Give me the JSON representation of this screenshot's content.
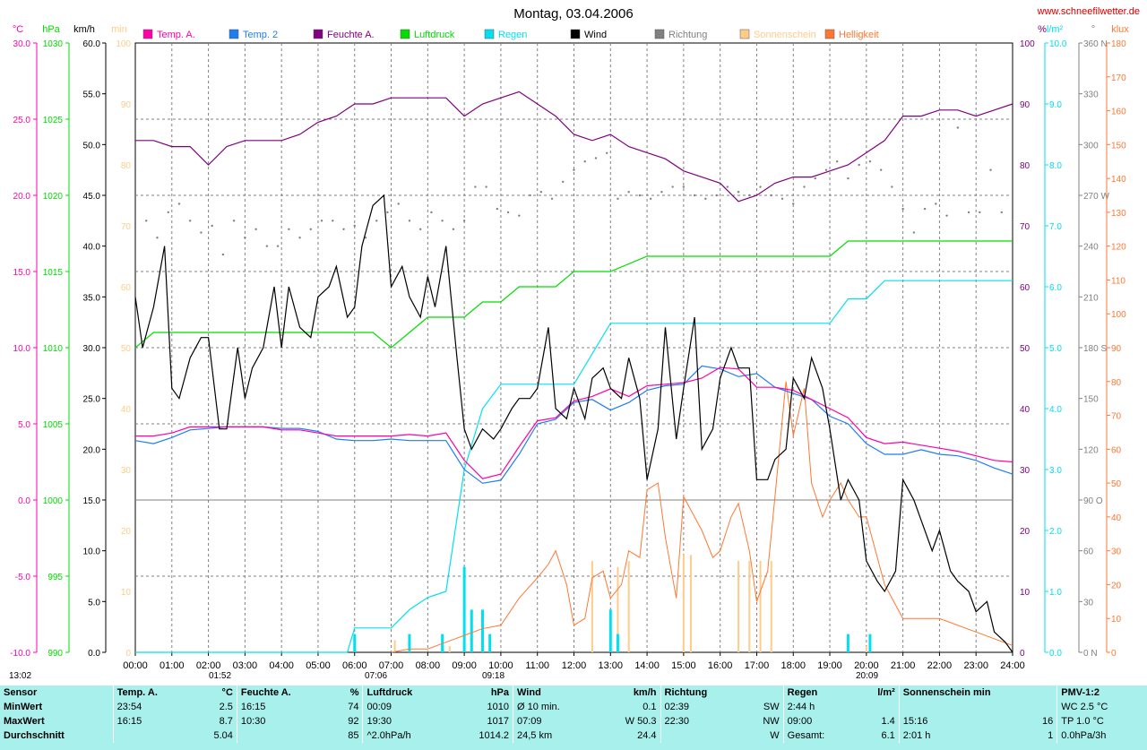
{
  "title": "Montag, 03.04.2006",
  "site": "www.schneefilwetter.de",
  "colors": {
    "temp_a": "#ff00aa",
    "temp_2": "#1e7ef0",
    "feuchte": "#800080",
    "luftdruck": "#00dd00",
    "regen": "#00e0f0",
    "wind": "#000000",
    "richtung": "#808080",
    "sonnenschein": "#ffcc88",
    "helligkeit": "#ff7733",
    "stats_bg": "#a8f0ec"
  },
  "legend": [
    "Temp. A.",
    "Temp. 2",
    "Feuchte A.",
    "Luftdruck",
    "Regen",
    "Wind",
    "Richtung",
    "Sonnenschein",
    "Helligkeit"
  ],
  "axes": {
    "temp": {
      "unit": "°C",
      "min": -10,
      "max": 30,
      "ticks": [
        "30.0",
        "25.0",
        "20.0",
        "15.0",
        "10.0",
        "5.0",
        "0.0",
        "-5.0",
        "-10.0"
      ]
    },
    "pressure": {
      "unit": "hPa",
      "min": 990,
      "max": 1030,
      "ticks": [
        "1030",
        "1025",
        "1020",
        "1015",
        "1010",
        "1005",
        "1000",
        "995",
        "990"
      ]
    },
    "wind": {
      "unit": "km/h",
      "min": 0,
      "max": 60,
      "ticks": [
        "60.0",
        "55.0",
        "50.0",
        "45.0",
        "40.0",
        "35.0",
        "30.0",
        "25.0",
        "20.0",
        "15.0",
        "10.0",
        "5.0",
        "0.0"
      ]
    },
    "sun": {
      "unit": "min",
      "min": 0,
      "max": 100,
      "ticks": [
        "100",
        "90",
        "80",
        "70",
        "60",
        "50",
        "40",
        "30",
        "20",
        "10",
        "0"
      ]
    },
    "humidity": {
      "unit": "%",
      "min": 0,
      "max": 100,
      "ticks": [
        "100",
        "90",
        "80",
        "70",
        "60",
        "50",
        "40",
        "30",
        "20",
        "10",
        "0"
      ]
    },
    "rain": {
      "unit": "l/m²",
      "min": 0,
      "max": 10,
      "ticks": [
        "10.0",
        "9.0",
        "8.0",
        "7.0",
        "6.0",
        "5.0",
        "4.0",
        "3.0",
        "2.0",
        "1.0",
        "0.0"
      ]
    },
    "direction": {
      "unit": "°",
      "min": 0,
      "max": 360,
      "ticks": [
        "360 N",
        "330",
        "300",
        "270 W",
        "240",
        "210",
        "180 S",
        "150",
        "120",
        "90 O",
        "60",
        "30",
        "0 N"
      ]
    },
    "klux": {
      "unit": "klux",
      "min": 0,
      "max": 180,
      "ticks": [
        "180",
        "170",
        "160",
        "150",
        "140",
        "130",
        "120",
        "110",
        "100",
        "90",
        "80",
        "70",
        "60",
        "50",
        "40",
        "30",
        "20",
        "10",
        "0"
      ]
    },
    "x_ticks": [
      "00:00",
      "01:00",
      "02:00",
      "03:00",
      "04:00",
      "05:00",
      "06:00",
      "07:00",
      "08:00",
      "09:00",
      "10:00",
      "11:00",
      "12:00",
      "13:00",
      "14:00",
      "15:00",
      "16:00",
      "17:00",
      "18:00",
      "19:00",
      "20:00",
      "21:00",
      "22:00",
      "23:00",
      "24:00"
    ]
  },
  "markers": {
    "daylength": "13:02",
    "moonrise": "01:52",
    "sunrise": "07:06",
    "moonset": "09:18",
    "sunset": "20:09"
  },
  "chart_data": {
    "type": "line",
    "x_unit": "hours",
    "series": [
      {
        "name": "Temp. A.",
        "axis": "temp",
        "x": [
          0,
          0.5,
          1,
          1.5,
          2,
          2.5,
          3,
          3.5,
          4,
          4.5,
          5,
          5.5,
          6,
          6.5,
          7,
          7.5,
          8,
          8.5,
          9,
          9.5,
          10,
          10.5,
          11,
          11.5,
          12,
          12.5,
          13,
          13.5,
          14,
          14.5,
          15,
          15.5,
          16,
          16.5,
          17,
          17.5,
          18,
          18.5,
          19,
          19.5,
          20,
          20.5,
          21,
          21.5,
          22,
          22.5,
          23,
          23.5,
          24
        ],
        "y": [
          4.2,
          4.2,
          4.4,
          4.8,
          4.8,
          4.8,
          4.8,
          4.8,
          4.6,
          4.6,
          4.4,
          4.2,
          4.2,
          4.2,
          4.2,
          4.3,
          4.2,
          4.4,
          2.6,
          1.4,
          1.7,
          3.5,
          5.2,
          5.4,
          6.5,
          6.8,
          7.3,
          6.8,
          7.5,
          7.6,
          7.7,
          8.0,
          8.7,
          8.6,
          7.4,
          7.4,
          7.2,
          6.6,
          6.0,
          5.4,
          4.1,
          3.7,
          3.8,
          3.6,
          3.4,
          3.2,
          2.9,
          2.6,
          2.5
        ]
      },
      {
        "name": "Temp. 2",
        "axis": "temp",
        "x": [
          0,
          0.5,
          1,
          1.5,
          2,
          2.5,
          3,
          3.5,
          4,
          4.5,
          5,
          5.5,
          6,
          6.5,
          7,
          7.5,
          8,
          8.5,
          9,
          9.5,
          10,
          10.5,
          11,
          11.5,
          12,
          12.5,
          13,
          13.5,
          14,
          14.5,
          15,
          15.5,
          16,
          16.5,
          17,
          17.5,
          18,
          18.5,
          19,
          19.5,
          20,
          20.5,
          21,
          21.5,
          22,
          22.5,
          23,
          23.5,
          24
        ],
        "y": [
          3.9,
          3.7,
          4.1,
          4.6,
          4.7,
          4.8,
          4.8,
          4.8,
          4.7,
          4.7,
          4.5,
          4.0,
          3.9,
          3.9,
          4.0,
          3.9,
          3.9,
          3.9,
          2.0,
          1.1,
          1.3,
          3.0,
          5.0,
          5.3,
          6.4,
          6.6,
          5.9,
          6.4,
          7.2,
          7.5,
          7.6,
          8.8,
          8.6,
          8.1,
          8.3,
          7.4,
          7.0,
          6.6,
          5.5,
          5.0,
          3.7,
          3.0,
          3.0,
          3.3,
          3.0,
          2.9,
          2.6,
          2.1,
          1.7
        ]
      },
      {
        "name": "Feuchte A.",
        "axis": "humidity",
        "x": [
          0,
          0.5,
          1,
          1.5,
          2,
          2.5,
          3,
          3.5,
          4,
          4.5,
          5,
          5.5,
          6,
          6.5,
          7,
          7.5,
          8,
          8.5,
          9,
          9.5,
          10,
          10.5,
          11,
          11.5,
          12,
          12.5,
          13,
          13.5,
          14,
          14.5,
          15,
          15.5,
          16,
          16.5,
          17,
          17.5,
          18,
          18.5,
          19,
          19.5,
          20,
          20.5,
          21,
          21.5,
          22,
          22.5,
          23,
          23.5,
          24
        ],
        "y": [
          84,
          84,
          83,
          83,
          80,
          83,
          84,
          84,
          84,
          85,
          87,
          88,
          90,
          90,
          91,
          91,
          91,
          91,
          88,
          90,
          91,
          92,
          90,
          88,
          85,
          84,
          85,
          83,
          82,
          81,
          79,
          78,
          77,
          74,
          75,
          77,
          78,
          78,
          79,
          80,
          82,
          84,
          88,
          88,
          89,
          89,
          88,
          89,
          90
        ]
      },
      {
        "name": "Luftdruck",
        "axis": "pressure",
        "x": [
          0,
          0.5,
          1,
          1.5,
          2,
          3,
          4,
          5,
          6,
          6.5,
          7,
          7.5,
          8,
          8.5,
          9,
          9.5,
          10,
          10.5,
          11,
          11.5,
          12,
          12.5,
          13,
          14,
          15,
          16,
          17,
          18,
          19,
          19.5,
          20,
          21,
          22,
          23,
          24
        ],
        "y": [
          1010,
          1011,
          1011,
          1011,
          1011,
          1011,
          1011,
          1011,
          1011,
          1011,
          1010,
          1011,
          1012,
          1012,
          1012,
          1013,
          1013,
          1014,
          1014,
          1014,
          1015,
          1015,
          1015,
          1016,
          1016,
          1016,
          1016,
          1016,
          1016,
          1017,
          1017,
          1017,
          1017,
          1017,
          1017
        ]
      },
      {
        "name": "Regen",
        "axis": "rain",
        "x": [
          0,
          5.8,
          6,
          7,
          7.5,
          8,
          8.5,
          9,
          9.5,
          10,
          11,
          12,
          13,
          13.5,
          14,
          15,
          16,
          17,
          18,
          19,
          19.5,
          20,
          20.5,
          21,
          22,
          23,
          24
        ],
        "y": [
          0,
          0,
          0.4,
          0.4,
          0.7,
          0.9,
          1.0,
          3.0,
          4.0,
          4.4,
          4.4,
          4.4,
          5.4,
          5.4,
          5.4,
          5.4,
          5.4,
          5.4,
          5.4,
          5.4,
          5.8,
          5.8,
          6.1,
          6.1,
          6.1,
          6.1,
          6.1
        ]
      },
      {
        "name": "Wind",
        "axis": "wind",
        "x": [
          0,
          0.2,
          0.5,
          0.8,
          1,
          1.2,
          1.5,
          1.8,
          2,
          2.3,
          2.5,
          2.8,
          3,
          3.2,
          3.5,
          3.8,
          4,
          4.2,
          4.5,
          4.8,
          5,
          5.3,
          5.5,
          5.8,
          6,
          6.2,
          6.5,
          6.8,
          7,
          7.3,
          7.5,
          7.8,
          8,
          8.2,
          8.5,
          8.8,
          9,
          9.2,
          9.5,
          9.8,
          10,
          10.3,
          10.5,
          10.8,
          11,
          11.3,
          11.5,
          11.8,
          12,
          12.3,
          12.5,
          12.8,
          13,
          13.3,
          13.5,
          13.8,
          14,
          14.3,
          14.5,
          14.8,
          15,
          15.3,
          15.5,
          15.8,
          16,
          16.3,
          16.5,
          16.8,
          17,
          17.3,
          17.5,
          17.8,
          18,
          18.3,
          18.5,
          18.8,
          19,
          19.3,
          19.5,
          19.8,
          20,
          20.3,
          20.5,
          20.8,
          21,
          21.3,
          21.5,
          21.8,
          22,
          22.3,
          22.5,
          22.8,
          23,
          23.3,
          23.5,
          23.8,
          24
        ],
        "y": [
          35,
          30,
          34,
          40,
          26,
          25,
          29,
          31,
          31,
          22,
          22,
          30,
          25,
          28,
          30,
          36,
          30,
          36,
          32,
          31,
          35,
          36,
          38,
          33,
          34,
          40,
          44,
          45,
          36,
          38,
          35,
          33,
          37,
          34,
          40,
          29,
          22,
          20,
          22,
          21,
          22,
          24,
          25,
          25,
          26,
          32,
          24,
          23,
          26,
          23,
          27,
          28,
          26,
          25,
          29,
          25,
          17,
          22,
          32,
          21,
          26,
          33,
          20,
          22,
          27,
          30,
          28,
          28,
          17,
          17,
          19,
          20,
          27,
          25,
          29,
          26,
          22,
          15,
          17,
          15,
          9,
          7,
          6,
          8,
          17,
          15,
          13,
          10,
          12,
          8,
          7,
          6,
          4,
          5,
          2,
          1,
          0
        ]
      },
      {
        "name": "Richtung",
        "axis": "direction",
        "x": [
          0.3,
          0.6,
          0.9,
          1.2,
          1.5,
          1.8,
          2.1,
          2.4,
          2.7,
          3.0,
          3.3,
          3.6,
          3.9,
          4.2,
          4.5,
          4.8,
          5.1,
          5.4,
          5.7,
          6.0,
          6.3,
          6.6,
          6.9,
          7.2,
          7.5,
          7.8,
          8.1,
          8.4,
          8.7,
          9.0,
          9.3,
          9.6,
          9.9,
          10.2,
          10.5,
          10.8,
          11.1,
          11.4,
          11.7,
          12.0,
          12.3,
          12.6,
          12.9,
          13.2,
          13.5,
          13.8,
          14.1,
          14.4,
          14.7,
          15.0,
          15.3,
          15.6,
          15.9,
          16.2,
          16.5,
          16.8,
          17.1,
          17.4,
          17.7,
          18.0,
          18.3,
          18.6,
          18.9,
          19.2,
          19.5,
          19.8,
          20.1,
          20.4,
          20.7,
          21.0,
          21.3,
          21.6,
          21.9,
          22.2,
          22.5,
          22.8,
          23.1,
          23.4,
          23.7,
          24.0
        ],
        "y": [
          255,
          245,
          260,
          265,
          255,
          248,
          252,
          235,
          255,
          245,
          250,
          240,
          240,
          250,
          245,
          250,
          255,
          255,
          250,
          252,
          245,
          255,
          260,
          265,
          255,
          250,
          260,
          255,
          250,
          255,
          275,
          275,
          262,
          260,
          258,
          270,
          272,
          268,
          278,
          285,
          290,
          292,
          295,
          268,
          272,
          270,
          268,
          272,
          275,
          275,
          270,
          268,
          270,
          275,
          272,
          270,
          275,
          270,
          268,
          265,
          275,
          280,
          285,
          290,
          280,
          288,
          290,
          285,
          275,
          262,
          248,
          262,
          265,
          258,
          310,
          260,
          260,
          285,
          260,
          255
        ]
      },
      {
        "name": "Sonnenschein",
        "axis": "sun",
        "x": [
          7.1,
          8.6,
          9.2,
          12.5,
          13.2,
          13.5,
          15.0,
          15.2,
          16.5,
          16.8,
          17.1,
          17.4,
          19.5,
          20.0
        ],
        "y": [
          2,
          1,
          3,
          15,
          14,
          15,
          16,
          16,
          15,
          15,
          15,
          15,
          1,
          1
        ]
      },
      {
        "name": "Helligkeit",
        "axis": "klux",
        "x": [
          7,
          7.5,
          8,
          8.5,
          9,
          9.5,
          10,
          10.5,
          11,
          11.3,
          11.5,
          11.8,
          12,
          12.3,
          12.5,
          12.8,
          13,
          13.3,
          13.5,
          13.8,
          14,
          14.3,
          14.5,
          14.8,
          15,
          15.3,
          15.5,
          15.8,
          16,
          16.3,
          16.5,
          16.8,
          17,
          17.3,
          17.5,
          17.8,
          18,
          18.3,
          18.5,
          18.8,
          19,
          19.3,
          19.5,
          19.8,
          20,
          20.5,
          21,
          22,
          23,
          24
        ],
        "y": [
          0,
          1,
          1,
          3,
          5,
          7,
          8,
          16,
          22,
          26,
          30,
          20,
          8,
          10,
          22,
          24,
          16,
          20,
          30,
          28,
          48,
          50,
          34,
          16,
          46,
          40,
          36,
          28,
          30,
          40,
          44,
          30,
          15,
          24,
          46,
          80,
          64,
          78,
          50,
          40,
          45,
          50,
          45,
          40,
          40,
          20,
          10,
          10,
          6,
          2
        ]
      }
    ]
  },
  "stats": {
    "headers": {
      "sensor": "Sensor",
      "temp": "Temp. A.",
      "temp_unit": "°C",
      "feuchte": "Feuchte A.",
      "feuchte_unit": "%",
      "luftdruck": "Luftdruck",
      "luftdruck_unit": "hPa",
      "wind": "Wind",
      "wind_unit": "km/h",
      "richtung": "Richtung",
      "regen": "Regen",
      "regen_unit": "l/m²",
      "sonne": "Sonnenschein min",
      "pmv": "PMV-1:2"
    },
    "rows": [
      {
        "label": "MinWert",
        "temp_t": "23:54",
        "temp_v": "2.5",
        "feuchte_t": "16:15",
        "feuchte_v": "74",
        "druck_t": "00:09",
        "druck_v": "1010",
        "wind_t": "Ø 10 min.",
        "wind_v": "0.1",
        "richt_t": "02:39",
        "richt_v": "SW",
        "regen_t": "2:44 h",
        "regen_v": "",
        "sonne_t": "",
        "sonne_v": "",
        "pmv": "WC 2.5 °C"
      },
      {
        "label": "MaxWert",
        "temp_t": "16:15",
        "temp_v": "8.7",
        "feuchte_t": "10:30",
        "feuchte_v": "92",
        "druck_t": "19:30",
        "druck_v": "1017",
        "wind_t": "07:09",
        "wind_v": "W 50.3",
        "richt_t": "22:30",
        "richt_v": "NW",
        "regen_t": "09:00",
        "regen_v": "1.4",
        "sonne_t": "15:16",
        "sonne_v": "16",
        "pmv": "TP 1.0 °C"
      },
      {
        "label": "Durchschnitt",
        "temp_t": "",
        "temp_v": "5.04",
        "feuchte_t": "",
        "feuchte_v": "85",
        "druck_t": "^2.0hPa/h",
        "druck_v": "1014.2",
        "wind_t": "24,5 km",
        "wind_v": "24.4",
        "richt_t": "",
        "richt_v": "W",
        "regen_t": "Gesamt:",
        "regen_v": "6.1",
        "sonne_t": "2:01 h",
        "sonne_v": "1",
        "pmv": "0.0hPa/3h"
      }
    ]
  }
}
